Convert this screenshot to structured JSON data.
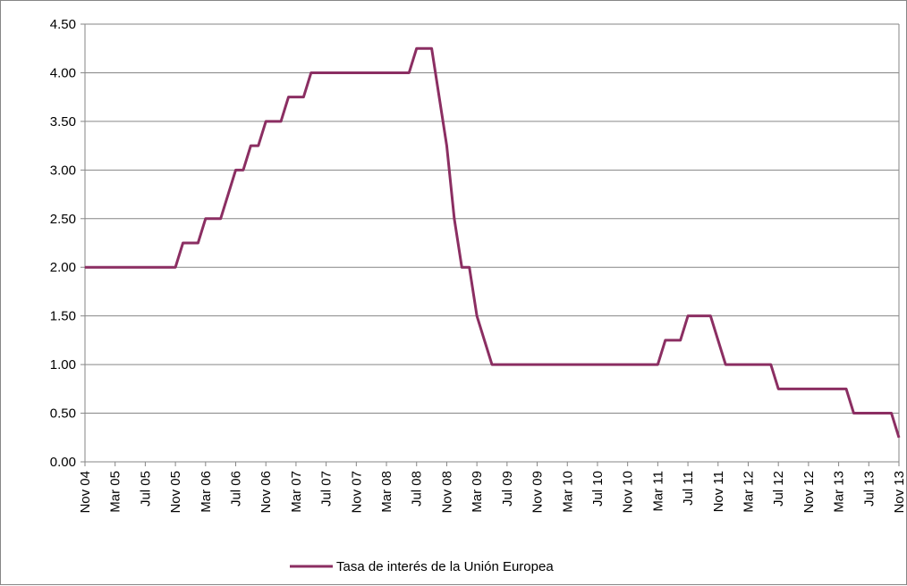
{
  "chart_data": {
    "type": "line",
    "title": "",
    "xlabel": "",
    "ylabel": "",
    "ylim": [
      0,
      4.5
    ],
    "y_ticks": [
      "0.00",
      "0.50",
      "1.00",
      "1.50",
      "2.00",
      "2.50",
      "3.00",
      "3.50",
      "4.00",
      "4.50"
    ],
    "x_tick_labels": [
      "Nov 04",
      "Mar 05",
      "Jul 05",
      "Nov 05",
      "Mar 06",
      "Jul 06",
      "Nov 06",
      "Mar 07",
      "Jul 07",
      "Nov 07",
      "Mar 08",
      "Jul 08",
      "Nov 08",
      "Mar 09",
      "Jul 09",
      "Nov 09",
      "Mar 10",
      "Jul 10",
      "Nov 10",
      "Mar 11",
      "Jul 11",
      "Nov 11",
      "Mar 12",
      "Jul 12",
      "Nov 12",
      "Mar 13",
      "Jul 13",
      "Nov 13"
    ],
    "grid": "horizontal",
    "legend": "bottom",
    "line_color": "#8B2E62",
    "series": [
      {
        "name": "Tasa de interés de la Unión Europea",
        "points": [
          [
            "Nov 04",
            2.0
          ],
          [
            "Nov 05",
            2.0
          ],
          [
            "Dic 05",
            2.25
          ],
          [
            "Feb 06",
            2.25
          ],
          [
            "Mar 06",
            2.5
          ],
          [
            "Mayo 06",
            2.5
          ],
          [
            "Jun 06",
            2.75
          ],
          [
            "Jul 06",
            3.0
          ],
          [
            "Ago 06",
            3.0
          ],
          [
            "Sep 06",
            3.25
          ],
          [
            "Oct 06",
            3.25
          ],
          [
            "Nov 06",
            3.5
          ],
          [
            "Ene 07",
            3.5
          ],
          [
            "Feb 07",
            3.75
          ],
          [
            "Abr 07",
            3.75
          ],
          [
            "Mayo 07",
            4.0
          ],
          [
            "Jun 08",
            4.0
          ],
          [
            "Jul 08",
            4.25
          ],
          [
            "Sep 08",
            4.25
          ],
          [
            "Nov 08",
            3.25
          ],
          [
            "Dic 08",
            2.5
          ],
          [
            "Ene 09",
            2.0
          ],
          [
            "Feb 09",
            2.0
          ],
          [
            "Mar 09",
            1.5
          ],
          [
            "Abr 09",
            1.25
          ],
          [
            "Mayo 09",
            1.0
          ],
          [
            "Mar 11",
            1.0
          ],
          [
            "Abr 11",
            1.25
          ],
          [
            "Jun 11",
            1.25
          ],
          [
            "Jul 11",
            1.5
          ],
          [
            "Oct 11",
            1.5
          ],
          [
            "Nov 11",
            1.25
          ],
          [
            "Dic 11",
            1.0
          ],
          [
            "Jun 12",
            1.0
          ],
          [
            "Jul 12",
            0.75
          ],
          [
            "Abr 13",
            0.75
          ],
          [
            "Mayo 13",
            0.5
          ],
          [
            "Oct 13",
            0.5
          ],
          [
            "Nov 13",
            0.25
          ]
        ]
      }
    ]
  }
}
